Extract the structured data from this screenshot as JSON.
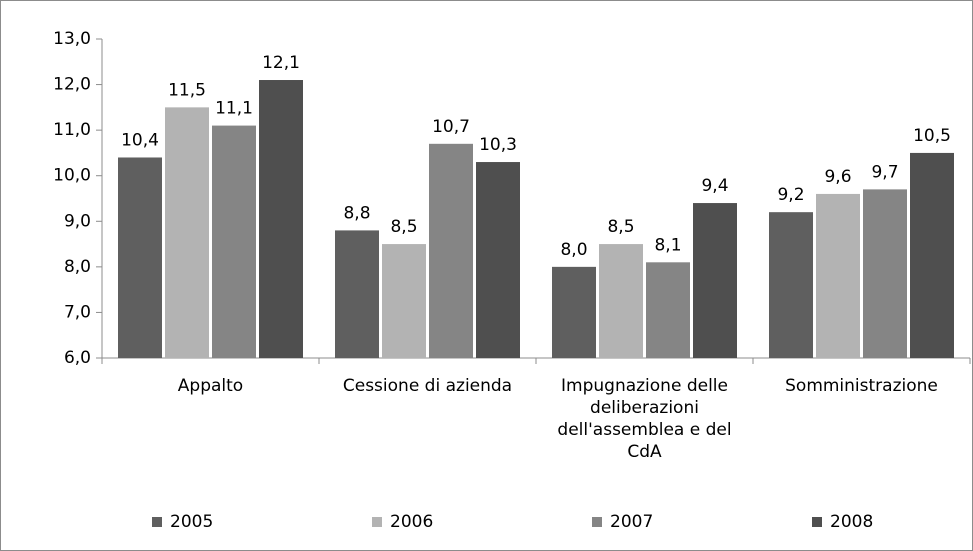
{
  "chart_data": {
    "type": "bar",
    "categories": [
      "Appalto",
      "Cessione di azienda",
      "Impugnazione delle deliberazioni dell'assemblea e del CdA",
      "Somministrazione"
    ],
    "series": [
      {
        "name": "2005",
        "color": "#5f5f5f",
        "values": [
          10.4,
          8.8,
          8.0,
          9.2
        ],
        "value_labels": [
          "10,4",
          "8,8",
          "8,0",
          "9,2"
        ]
      },
      {
        "name": "2006",
        "color": "#b3b3b3",
        "values": [
          11.5,
          8.5,
          8.5,
          9.6
        ],
        "value_labels": [
          "11,5",
          "8,5",
          "8,5",
          "9,6"
        ]
      },
      {
        "name": "2007",
        "color": "#858585",
        "values": [
          11.1,
          10.7,
          8.1,
          9.7
        ],
        "value_labels": [
          "11,1",
          "10,7",
          "8,1",
          "9,7"
        ]
      },
      {
        "name": "2008",
        "color": "#4f4f4f",
        "values": [
          12.1,
          10.3,
          9.4,
          10.5
        ],
        "value_labels": [
          "12,1",
          "10,3",
          "9,4",
          "10,5"
        ]
      }
    ],
    "ylim": [
      6,
      13
    ],
    "yticks": [
      {
        "value": 6,
        "label": "6,0"
      },
      {
        "value": 7,
        "label": "7,0"
      },
      {
        "value": 8,
        "label": "8,0"
      },
      {
        "value": 9,
        "label": "9,0"
      },
      {
        "value": 10,
        "label": "10,0"
      },
      {
        "value": 11,
        "label": "11,0"
      },
      {
        "value": 12,
        "label": "12,0"
      },
      {
        "value": 13,
        "label": "13,0"
      }
    ],
    "legend": "bottom"
  }
}
